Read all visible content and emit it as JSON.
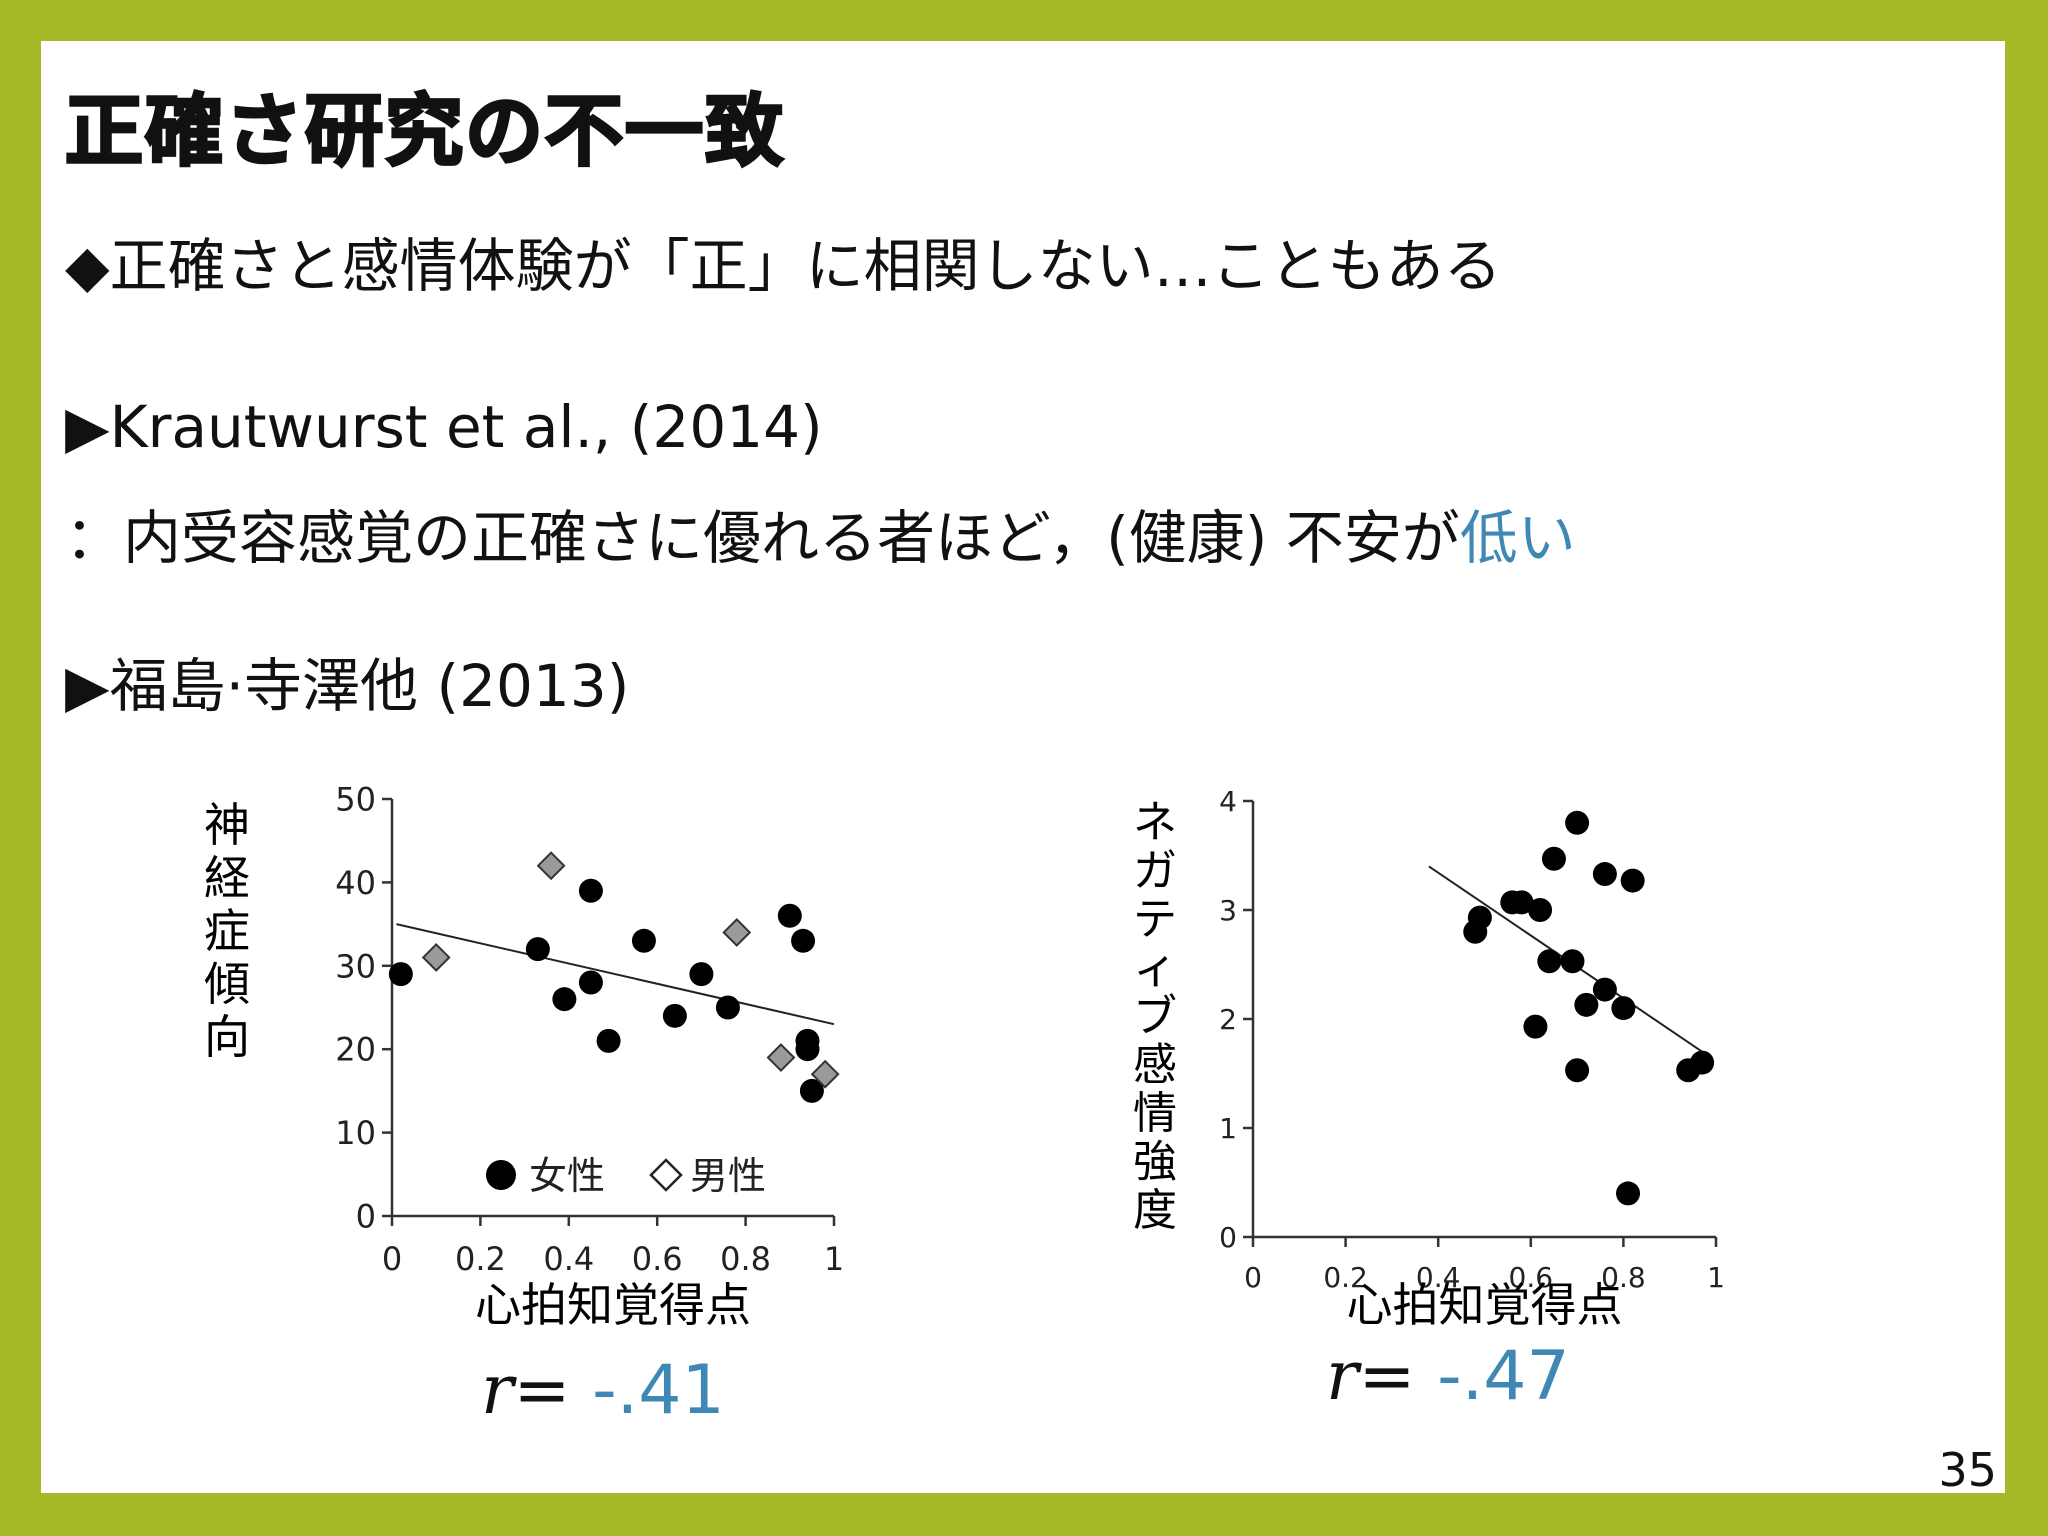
{
  "slide": {
    "title": "正確さ研究の不一致",
    "bullet1": {
      "marker": "◆",
      "text": "正確さと感情体験が「正」に相関しない…こともある"
    },
    "item1": {
      "marker": "▶",
      "citation": "Krautwurst et al., (2014)",
      "finding_prefix": "：内受容感覚の正確さに優れる者ほど，(健康) 不安が",
      "finding_highlight": "低い"
    },
    "item2": {
      "marker": "▶",
      "citation": "福島·寺澤他 (2013)"
    },
    "page_number": "35",
    "accent_color": "#3f88b5",
    "border_color": "#a6b929"
  },
  "chart_data": [
    {
      "type": "scatter",
      "xlabel": "心拍知覚得点",
      "ylabel": "神経症傾向",
      "xlim": [
        0,
        1
      ],
      "ylim": [
        0,
        50
      ],
      "xticks": [
        "0",
        "0.2",
        "0.4",
        "0.6",
        "0.8",
        "1"
      ],
      "yticks": [
        "0",
        "10",
        "20",
        "30",
        "40",
        "50"
      ],
      "legend": [
        {
          "name": "女性",
          "marker": "circle"
        },
        {
          "name": "男性",
          "marker": "diamond"
        }
      ],
      "series": [
        {
          "name": "女性",
          "points": [
            [
              0.02,
              29
            ],
            [
              0.33,
              32
            ],
            [
              0.39,
              26
            ],
            [
              0.45,
              39
            ],
            [
              0.45,
              28
            ],
            [
              0.49,
              21
            ],
            [
              0.57,
              33
            ],
            [
              0.64,
              24
            ],
            [
              0.7,
              29
            ],
            [
              0.76,
              25
            ],
            [
              0.9,
              36
            ],
            [
              0.93,
              33
            ],
            [
              0.94,
              20
            ],
            [
              0.94,
              21
            ],
            [
              0.95,
              15
            ]
          ]
        },
        {
          "name": "男性",
          "points": [
            [
              0.1,
              31
            ],
            [
              0.36,
              42
            ],
            [
              0.78,
              34
            ],
            [
              0.88,
              19
            ],
            [
              0.98,
              17
            ]
          ]
        }
      ],
      "trendline": [
        [
          0.01,
          35
        ],
        [
          1.0,
          23
        ]
      ],
      "r_prefix": "r",
      "r_equals": "=",
      "r_value": "-.41"
    },
    {
      "type": "scatter",
      "xlabel": "心拍知覚得点",
      "ylabel": "ネガティブ感情強度",
      "xlim": [
        0,
        1
      ],
      "ylim": [
        0,
        4
      ],
      "xticks": [
        "0",
        "0.2",
        "0.4",
        "0.6",
        "0.8",
        "1"
      ],
      "yticks": [
        "0",
        "1",
        "2",
        "3",
        "4"
      ],
      "series": [
        {
          "points": [
            [
              0.48,
              2.8
            ],
            [
              0.49,
              2.93
            ],
            [
              0.56,
              3.07
            ],
            [
              0.58,
              3.07
            ],
            [
              0.61,
              1.93
            ],
            [
              0.62,
              3.0
            ],
            [
              0.64,
              2.53
            ],
            [
              0.65,
              3.47
            ],
            [
              0.69,
              2.53
            ],
            [
              0.7,
              3.8
            ],
            [
              0.7,
              1.53
            ],
            [
              0.72,
              2.13
            ],
            [
              0.76,
              3.33
            ],
            [
              0.76,
              2.27
            ],
            [
              0.8,
              2.1
            ],
            [
              0.81,
              0.4
            ],
            [
              0.82,
              3.27
            ],
            [
              0.94,
              1.53
            ],
            [
              0.97,
              1.6
            ]
          ]
        }
      ],
      "trendline": [
        [
          0.38,
          3.4
        ],
        [
          0.97,
          1.7
        ]
      ],
      "r_prefix": "r",
      "r_equals": "=",
      "r_value": "-.47"
    }
  ]
}
